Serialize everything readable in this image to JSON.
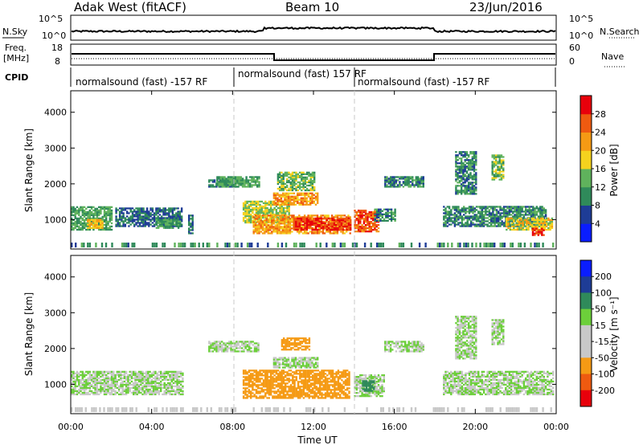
{
  "header": {
    "station": "Adak West (fitACF)",
    "beam": "Beam 10",
    "date": "23/Jun/2016"
  },
  "left_labels": {
    "nsky": "N.Sky",
    "freq_line1": "Freq.",
    "freq_line2": "[MHz]",
    "cpid": "CPID"
  },
  "right_labels": {
    "nsearch": "N.Search",
    "nave": "Nave"
  },
  "nsky_ticks": [
    "10^5",
    "10^0"
  ],
  "nsearch_ticks": [
    "10^5",
    "10^0"
  ],
  "freq_ticks": [
    "18",
    "8"
  ],
  "nave_ticks": [
    "60",
    "0"
  ],
  "cpid_labels": [
    "normalsound (fast) -157 RF",
    "normalsound (fast) 157 RF",
    "normalsound (fast) -157 RF"
  ],
  "colors": {
    "power": [
      "#0a1dff",
      "#1e3c96",
      "#2f8a5a",
      "#5fb25c",
      "#f5d21e",
      "#f59a14",
      "#ee5a10",
      "#e8000b"
    ],
    "velocity": [
      "#e8000b",
      "#ee5a10",
      "#f59a14",
      "#c8c8c8",
      "#c8c8c8",
      "#6ccf3a",
      "#2f8a5a",
      "#1e3c96",
      "#0a1dff"
    ],
    "gray": "#c8c8c8"
  },
  "chart_data": [
    {
      "type": "heatmap",
      "name": "power",
      "xlabel": "",
      "ylabel": "Slant Range [km]",
      "xlim": [
        0,
        24
      ],
      "ylim": [
        180,
        4600
      ],
      "yticks": [
        "4000",
        "3000",
        "2000",
        "1000"
      ],
      "ytick_values": [
        4000,
        3000,
        2000,
        1000
      ],
      "colorbar": {
        "label": "Power [dB]",
        "ticks": [
          "28",
          "24",
          "20",
          "16",
          "12",
          "8",
          "4"
        ],
        "tick_values": [
          28,
          24,
          20,
          16,
          12,
          8,
          4
        ],
        "range": [
          0,
          32
        ]
      },
      "echo_regions": [
        {
          "t": [
            0.0,
            2.0
          ],
          "r": [
            700,
            1350
          ],
          "db": 12
        },
        {
          "t": [
            0.8,
            1.6
          ],
          "r": [
            750,
            1000
          ],
          "db": 20
        },
        {
          "t": [
            2.2,
            5.5
          ],
          "r": [
            800,
            1300
          ],
          "db": 8
        },
        {
          "t": [
            4.2,
            5.4
          ],
          "r": [
            750,
            1000
          ],
          "db": 12
        },
        {
          "t": [
            5.8,
            6.0
          ],
          "r": [
            600,
            1100
          ],
          "db": 8
        },
        {
          "t": [
            6.8,
            8.3
          ],
          "r": [
            1900,
            2100
          ],
          "db": 8
        },
        {
          "t": [
            7.2,
            9.3
          ],
          "r": [
            1900,
            2200
          ],
          "db": 12
        },
        {
          "t": [
            8.5,
            10.8
          ],
          "r": [
            900,
            1500
          ],
          "db": 16
        },
        {
          "t": [
            9.0,
            13.8
          ],
          "r": [
            600,
            1100
          ],
          "db": 22
        },
        {
          "t": [
            11.0,
            13.8
          ],
          "r": [
            700,
            1050
          ],
          "db": 28
        },
        {
          "t": [
            10.0,
            12.2
          ],
          "r": [
            1400,
            1750
          ],
          "db": 22
        },
        {
          "t": [
            10.2,
            12.0
          ],
          "r": [
            1800,
            2300
          ],
          "db": 14
        },
        {
          "t": [
            14.0,
            15.2
          ],
          "r": [
            650,
            1250
          ],
          "db": 26
        },
        {
          "t": [
            15.0,
            16.0
          ],
          "r": [
            950,
            1300
          ],
          "db": 10
        },
        {
          "t": [
            15.5,
            17.4
          ],
          "r": [
            1900,
            2200
          ],
          "db": 10
        },
        {
          "t": [
            18.4,
            23.5
          ],
          "r": [
            800,
            1350
          ],
          "db": 10
        },
        {
          "t": [
            21.5,
            23.8
          ],
          "r": [
            700,
            1050
          ],
          "db": 18
        },
        {
          "t": [
            22.8,
            23.4
          ],
          "r": [
            550,
            750
          ],
          "db": 28
        },
        {
          "t": [
            19.0,
            20.0
          ],
          "r": [
            1700,
            2900
          ],
          "db": 10
        },
        {
          "t": [
            20.8,
            21.4
          ],
          "r": [
            2100,
            2800
          ],
          "db": 14
        }
      ]
    },
    {
      "type": "heatmap",
      "name": "velocity",
      "xlabel": "Time UT",
      "ylabel": "Slant Range [km]",
      "xlim": [
        0,
        24
      ],
      "ylim": [
        180,
        4600
      ],
      "xticks": [
        "00:00",
        "04:00",
        "08:00",
        "12:00",
        "16:00",
        "20:00",
        "00:00"
      ],
      "xtick_values": [
        0,
        4,
        8,
        12,
        16,
        20,
        24
      ],
      "yticks": [
        "4000",
        "3000",
        "2000",
        "1000"
      ],
      "ytick_values": [
        4000,
        3000,
        2000,
        1000
      ],
      "colorbar": {
        "label": "Velocity [m s⁻¹]",
        "ticks": [
          "200",
          "100",
          "50",
          "15",
          "-15",
          "-50",
          "-100",
          "-200"
        ],
        "tick_values": [
          200,
          100,
          50,
          15,
          -15,
          -50,
          -100,
          -200
        ]
      },
      "echo_regions": [
        {
          "t": [
            0.0,
            5.5
          ],
          "r": [
            700,
            1350
          ],
          "v": 0
        },
        {
          "t": [
            6.8,
            9.3
          ],
          "r": [
            1900,
            2200
          ],
          "v": 0
        },
        {
          "t": [
            8.5,
            13.8
          ],
          "r": [
            600,
            1400
          ],
          "v": -60
        },
        {
          "t": [
            10.0,
            12.2
          ],
          "r": [
            1450,
            1750
          ],
          "v": 0
        },
        {
          "t": [
            10.4,
            11.8
          ],
          "r": [
            1950,
            2300
          ],
          "v": -60
        },
        {
          "t": [
            14.0,
            15.5
          ],
          "r": [
            650,
            1250
          ],
          "v": 0
        },
        {
          "t": [
            14.4,
            15.0
          ],
          "r": [
            800,
            1100
          ],
          "v": 30
        },
        {
          "t": [
            15.5,
            17.4
          ],
          "r": [
            1900,
            2200
          ],
          "v": 0
        },
        {
          "t": [
            18.4,
            23.8
          ],
          "r": [
            700,
            1350
          ],
          "v": 0
        },
        {
          "t": [
            19.0,
            20.0
          ],
          "r": [
            1700,
            2900
          ],
          "v": 0
        },
        {
          "t": [
            20.8,
            21.4
          ],
          "r": [
            2100,
            2800
          ],
          "v": 0
        }
      ]
    }
  ]
}
